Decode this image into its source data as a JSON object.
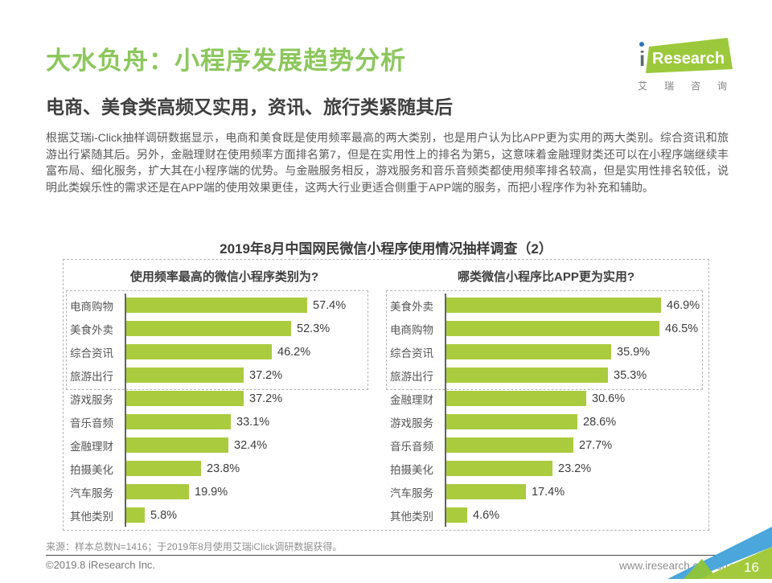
{
  "page": {
    "title": "大水负舟：小程序发展趋势分析",
    "subtitle": "电商、美食类高频又实用，资讯、旅行类紧随其后",
    "body": "根据艾瑞i-Click抽样调研数据显示，电商和美食既是使用频率最高的两大类别，也是用户认为比APP更为实用的两大类别。综合资讯和旅游出行紧随其后。另外，金融理财在使用频率方面排名第7，但是在实用性上的排名为第5，这意味着金融理财类还可以在小程序端继续丰富布局、细化服务，扩大其在小程序端的优势。与金融服务相反，游戏服务和音乐音频类都使用频率排名较高，但是实用性排名较低，说明此类娱乐性的需求还是在APP端的使用效果更佳，这两大行业更适合侧重于APP端的服务，而把小程序作为补充和辅助。"
  },
  "logo": {
    "i": "i",
    "research": "Research",
    "cn": "艾瑞咨询"
  },
  "chart_block_title": "2019年8月中国网民微信小程序使用情况抽样调查（2）",
  "chart_data": [
    {
      "type": "bar",
      "orientation": "horizontal",
      "title": "使用频率最高的微信小程序类别为?",
      "categories": [
        "电商购物",
        "美食外卖",
        "综合资讯",
        "旅游出行",
        "游戏服务",
        "音乐音频",
        "金融理财",
        "拍摄美化",
        "汽车服务",
        "其他类别"
      ],
      "values": [
        57.4,
        52.3,
        46.2,
        37.2,
        37.2,
        33.1,
        32.4,
        23.8,
        19.9,
        5.8
      ],
      "unit": "%",
      "value_labels": true,
      "highlight_top_n": 4,
      "bar_color": "#ABCB3F"
    },
    {
      "type": "bar",
      "orientation": "horizontal",
      "title": "哪类微信小程序比APP更为实用?",
      "categories": [
        "美食外卖",
        "电商购物",
        "综合资讯",
        "旅游出行",
        "金融理财",
        "游戏服务",
        "音乐音频",
        "拍摄美化",
        "汽车服务",
        "其他类别"
      ],
      "values": [
        46.9,
        46.5,
        35.9,
        35.3,
        30.6,
        28.6,
        27.7,
        23.2,
        17.4,
        4.6
      ],
      "unit": "%",
      "value_labels": true,
      "highlight_top_n": 4,
      "bar_color": "#ABCB3F"
    }
  ],
  "footer": {
    "source": "来源：样本总数N=1416；于2019年8月使用艾瑞iClick调研数据获得。",
    "copyright": "©2019.8 iResearch Inc.",
    "website": "www.iresearch.com.cn",
    "page_number": "16"
  },
  "colors": {
    "accent_green": "#8CC75C",
    "bar_green": "#ABCB3F",
    "logo_green": "#9CC93C",
    "logo_dot_blue": "#2E75B6",
    "corner_blue": "#4AA6DB",
    "corner_green": "#A3CA3D",
    "corner_green_mid": "#8CC341",
    "corner_green_pale": "#CBDE82"
  }
}
